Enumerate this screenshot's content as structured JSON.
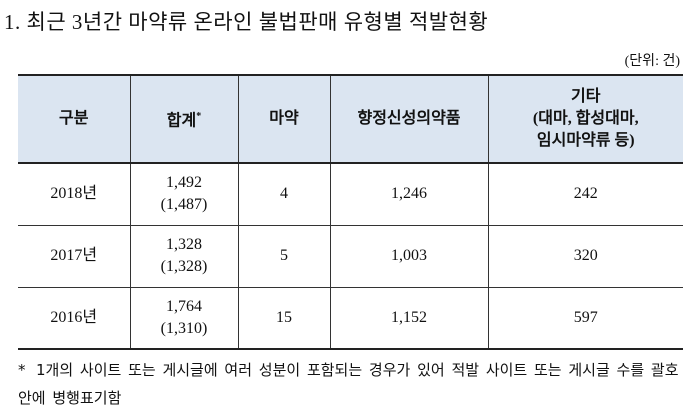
{
  "title": "1. 최근 3년간 마약류 온라인 불법판매 유형별 적발현황",
  "unit": "(단위: 건)",
  "table": {
    "header": [
      "구분",
      {
        "text": "합계",
        "mark": "*"
      },
      "마약",
      "향정신성의약품",
      [
        "기타",
        "(대마, 합성대마,",
        "임시마약류 등)"
      ]
    ],
    "rows": [
      [
        "2018년",
        [
          "1,492",
          "(1,487)"
        ],
        "4",
        "1,246",
        "242"
      ],
      [
        "2017년",
        [
          "1,328",
          "(1,328)"
        ],
        "5",
        "1,003",
        "320"
      ],
      [
        "2016년",
        [
          "1,764",
          "(1,310)"
        ],
        "15",
        "1,152",
        "597"
      ]
    ]
  },
  "footnote": {
    "mark": "*",
    "text": "1개의 사이트 또는 게시글에 여러 성분이 포함되는 경우가 있어 적발 사이트 또는 게시글 수를 괄호 안에 병행표기함"
  }
}
